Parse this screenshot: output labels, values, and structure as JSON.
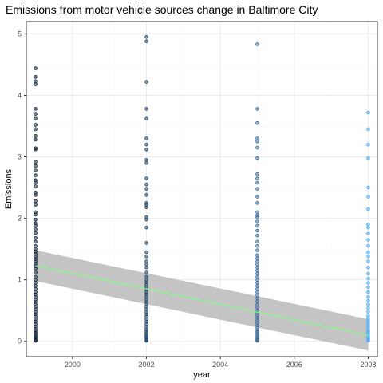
{
  "chart_data": {
    "type": "scatter",
    "title": "Emissions from motor vehicle sources change in Baltimore City",
    "xlabel": "year",
    "ylabel": "Emissions",
    "xlim": [
      1998.75,
      2008.25
    ],
    "ylim": [
      -0.25,
      5.2
    ],
    "x_ticks": [
      2000,
      2002,
      2004,
      2006,
      2008
    ],
    "y_ticks": [
      0,
      1,
      2,
      3,
      4,
      5
    ],
    "grid": true,
    "legend": "none",
    "colors": {
      "panel_border": "#333333",
      "grid_major": "#ebebeb",
      "grid_minor": "#f5f5f5",
      "ribbon": "#bebebe",
      "trend_line": "#80ff80",
      "point_1999": "#132b43",
      "point_2002": "#264b6d",
      "point_2005": "#3f709a",
      "point_2008": "#56b1f7"
    },
    "series": [
      {
        "x": 1999,
        "values": [
          4.44,
          4.3,
          4.23,
          4.18,
          3.78,
          3.7,
          3.62,
          3.52,
          3.45,
          3.34,
          3.28,
          3.14,
          3.12,
          2.92,
          2.85,
          2.78,
          2.7,
          2.62,
          2.58,
          2.52,
          2.42,
          2.38,
          2.28,
          2.22,
          2.1,
          2.06,
          1.98,
          1.92,
          1.88,
          1.82,
          1.76,
          1.68,
          1.62,
          1.55,
          1.5,
          1.46,
          1.42,
          1.38,
          1.34,
          1.3,
          1.26,
          1.22,
          1.18,
          1.12,
          1.05,
          1.0,
          0.95,
          0.9,
          0.85,
          0.8,
          0.76,
          0.72,
          0.68,
          0.64,
          0.6,
          0.56,
          0.52,
          0.48,
          0.44,
          0.4,
          0.36,
          0.32,
          0.28,
          0.24,
          0.2,
          0.17,
          0.14,
          0.11,
          0.08,
          0.06,
          0.04,
          0.02,
          0.01
        ]
      },
      {
        "x": 2002,
        "values": [
          4.95,
          4.88,
          4.22,
          3.78,
          3.62,
          3.3,
          3.2,
          3.12,
          2.95,
          2.9,
          2.65,
          2.55,
          2.48,
          2.38,
          2.25,
          2.22,
          2.18,
          2.02,
          1.98,
          1.85,
          1.6,
          1.45,
          1.38,
          1.3,
          1.25,
          1.2,
          1.12,
          1.05,
          1.0,
          0.96,
          0.92,
          0.88,
          0.84,
          0.8,
          0.76,
          0.72,
          0.68,
          0.64,
          0.6,
          0.56,
          0.52,
          0.48,
          0.44,
          0.4,
          0.36,
          0.32,
          0.28,
          0.24,
          0.2,
          0.17,
          0.14,
          0.11,
          0.08,
          0.06,
          0.04,
          0.02,
          0.01
        ]
      },
      {
        "x": 2005,
        "values": [
          4.83,
          3.78,
          3.55,
          3.3,
          3.25,
          3.15,
          2.98,
          2.72,
          2.65,
          2.58,
          2.48,
          2.35,
          2.25,
          2.1,
          2.05,
          2.02,
          1.95,
          1.88,
          1.8,
          1.72,
          1.62,
          1.55,
          1.48,
          1.4,
          1.35,
          1.3,
          1.25,
          1.2,
          1.15,
          1.1,
          1.05,
          1.0,
          0.95,
          0.9,
          0.85,
          0.8,
          0.75,
          0.7,
          0.65,
          0.6,
          0.55,
          0.5,
          0.46,
          0.42,
          0.38,
          0.34,
          0.3,
          0.26,
          0.22,
          0.18,
          0.15,
          0.12,
          0.09,
          0.06,
          0.04,
          0.02,
          0.01
        ]
      },
      {
        "x": 2008,
        "values": [
          3.72,
          3.45,
          3.2,
          2.98,
          2.5,
          2.35,
          2.15,
          1.9,
          1.85,
          1.75,
          1.65,
          1.55,
          1.45,
          1.38,
          1.3,
          1.2,
          1.1,
          1.02,
          0.95,
          0.88,
          0.8,
          0.72,
          0.66,
          0.6,
          0.54,
          0.48,
          0.42,
          0.38,
          0.34,
          0.3,
          0.26,
          0.22,
          0.18,
          0.15,
          0.12,
          0.09,
          0.06,
          0.04,
          0.02,
          0.01
        ]
      }
    ],
    "trend": {
      "x": [
        1999,
        2008
      ],
      "y": [
        1.23,
        0.1
      ],
      "ci_low": [
        0.98,
        -0.15
      ],
      "ci_high": [
        1.48,
        0.36
      ]
    }
  }
}
